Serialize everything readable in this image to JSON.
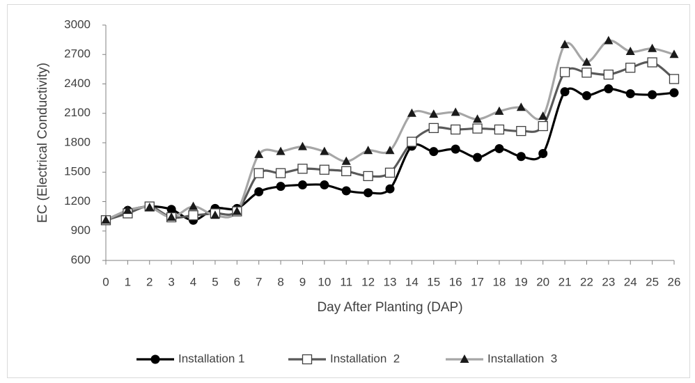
{
  "chart_data": {
    "type": "line",
    "xlabel": "Day After Planting (DAP)",
    "ylabel": "EC (Electrical Conductivity)",
    "x": [
      0,
      1,
      2,
      3,
      4,
      5,
      6,
      7,
      8,
      9,
      10,
      11,
      12,
      13,
      14,
      15,
      16,
      17,
      18,
      19,
      20,
      21,
      22,
      23,
      24,
      25,
      26
    ],
    "xlim": [
      0,
      26
    ],
    "xticks": [
      0,
      1,
      2,
      3,
      4,
      5,
      6,
      7,
      8,
      9,
      10,
      11,
      12,
      13,
      14,
      15,
      16,
      17,
      18,
      19,
      20,
      21,
      22,
      23,
      24,
      25,
      26
    ],
    "ylim": [
      600,
      3000
    ],
    "yticks": [
      600,
      900,
      1200,
      1500,
      1800,
      2100,
      2400,
      2700,
      3000
    ],
    "grid": false,
    "legend": "bottom",
    "series": [
      {
        "name": "Installation 1",
        "color": "#000000",
        "marker": "circle",
        "marker_color": "#000000",
        "values": [
          1010,
          1110,
          1150,
          1120,
          1010,
          1130,
          1130,
          1300,
          1355,
          1370,
          1370,
          1310,
          1290,
          1330,
          1765,
          1710,
          1735,
          1650,
          1740,
          1660,
          1690,
          2320,
          2280,
          2350,
          2300,
          2290,
          2310
        ]
      },
      {
        "name": "Installation  2",
        "color": "#595959",
        "marker": "square",
        "marker_color": "#ffffff",
        "values": [
          1010,
          1080,
          1150,
          1040,
          1060,
          1080,
          1100,
          1490,
          1490,
          1535,
          1525,
          1510,
          1460,
          1495,
          1810,
          1950,
          1935,
          1945,
          1935,
          1920,
          1970,
          2520,
          2515,
          2495,
          2565,
          2620,
          2450
        ]
      },
      {
        "name": "Installation  3",
        "color": "#a6a6a6",
        "marker": "triangle",
        "marker_color": "#1a1a1a",
        "values": [
          1010,
          1110,
          1140,
          1040,
          1150,
          1060,
          1100,
          1680,
          1710,
          1760,
          1710,
          1610,
          1720,
          1720,
          2100,
          2090,
          2110,
          2040,
          2120,
          2160,
          2070,
          2800,
          2620,
          2840,
          2730,
          2760,
          2700
        ]
      }
    ]
  }
}
